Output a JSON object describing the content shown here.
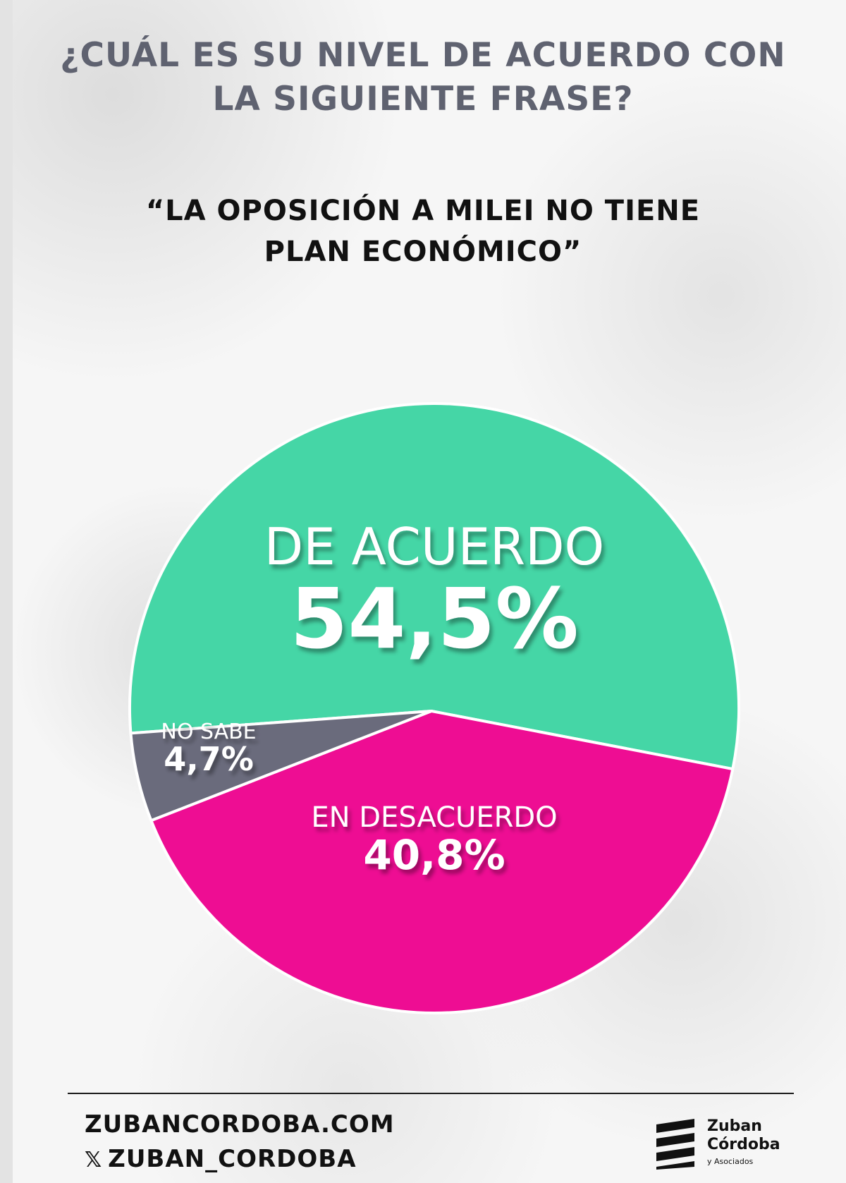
{
  "question": {
    "line1": "¿CUÁL ES SU NIVEL DE ACUERDO CON",
    "line2": "LA SIGUIENTE FRASE?"
  },
  "quote": {
    "line1": "“LA OPOSICIÓN A MILEI NO TIENE",
    "line2": "PLAN ECONÓMICO”"
  },
  "chart_data": {
    "type": "pie",
    "slices": [
      {
        "label": "DE ACUERDO",
        "value": 54.5,
        "value_label": "54,5%",
        "color": "#45d6a6"
      },
      {
        "label": "EN DESACUERDO",
        "value": 40.8,
        "value_label": "40,8%",
        "color": "#ee0d93"
      },
      {
        "label": "NO SABE",
        "value": 4.7,
        "value_label": "4,7%",
        "color": "#6a6b7c"
      }
    ]
  },
  "footer": {
    "website": "ZUBANCORDOBA.COM",
    "social_icon": "x-icon",
    "social": "ZUBAN_CORDOBA",
    "logo_line1": "Zuban",
    "logo_line2": "Córdoba",
    "logo_line3": "y Asociados"
  }
}
